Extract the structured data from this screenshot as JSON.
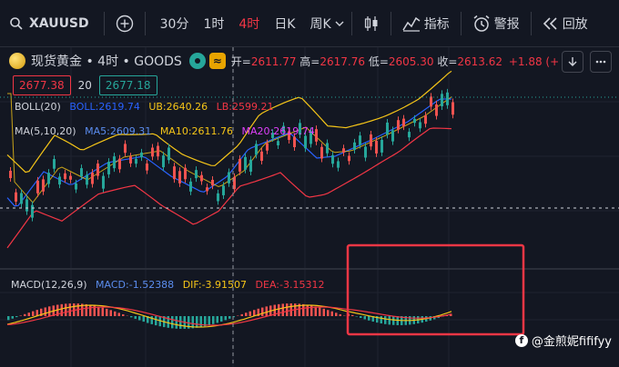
{
  "toolbar": {
    "symbol": "XAUUSD",
    "timeframes": [
      {
        "label": "30分",
        "active": false
      },
      {
        "label": "1时",
        "active": false
      },
      {
        "label": "4时",
        "active": true
      },
      {
        "label": "日K",
        "active": false
      },
      {
        "label": "周K",
        "active": false
      }
    ],
    "indicators_label": "指标",
    "alert_label": "警报",
    "replay_label": "回放"
  },
  "legend": {
    "title": "现货黄金 • 4时 • GOODS",
    "open_label": "开=",
    "open": "2611.77",
    "high_label": "高=",
    "high": "2617.76",
    "low_label": "低=",
    "low": "2605.30",
    "close_label": "收=",
    "close": "2613.62",
    "change": "+1.88 (+",
    "bid": "2677.38",
    "spread": "20",
    "ask": "2677.18"
  },
  "boll": {
    "name": "BOLL(20)",
    "mid": "BOLL:2619.74",
    "ub": "UB:2640.26",
    "lb": "LB:2599.21",
    "colors": {
      "mid": "#2962ff",
      "ub": "#f5c518",
      "lb": "#f23645"
    }
  },
  "ma": {
    "name": "MA(5,10,20)",
    "ma5": "MA5:2609.31",
    "ma10": "MA10:2611.76",
    "ma20": "MA20:2619.74",
    "colors": {
      "ma5": "#5b8def",
      "ma10": "#f5c518",
      "ma20": "#e040fb"
    }
  },
  "macd": {
    "name": "MACD(12,26,9)",
    "macd": "MACD:-1.52388",
    "dif": "DIF:-3.91507",
    "dea": "DEA:-3.15312",
    "colors": {
      "macd": "#5b8def",
      "dif": "#f5c518",
      "dea": "#f23645"
    }
  },
  "watermark": {
    "icon": "facebook-icon",
    "text": "@金煎妮fififyy"
  },
  "colors": {
    "up": "#26a69a",
    "down": "#ef5350",
    "highlight_box": "#f23645",
    "background": "#131722"
  }
}
